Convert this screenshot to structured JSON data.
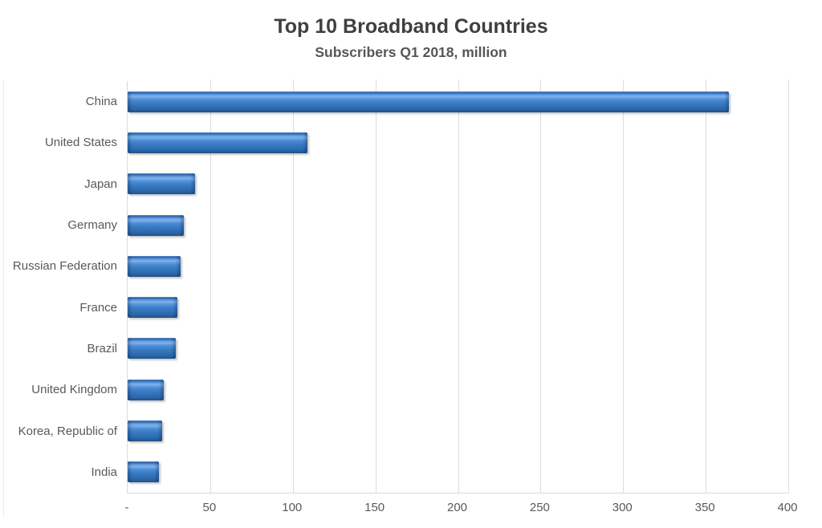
{
  "chart_data": {
    "type": "bar",
    "orientation": "horizontal",
    "title": "Top 10 Broadband Countries",
    "subtitle": "Subscribers Q1 2018, million",
    "categories": [
      "China",
      "United States",
      "Japan",
      "Germany",
      "Russian Federation",
      "France",
      "Brazil",
      "United Kingdom",
      "Korea, Republic of",
      "India"
    ],
    "values": [
      364,
      109,
      41,
      34,
      32,
      30,
      29,
      22,
      21,
      19
    ],
    "xlabel": "",
    "ylabel": "",
    "xlim": [
      0,
      400
    ],
    "xticks": [
      0,
      50,
      100,
      150,
      200,
      250,
      300,
      350,
      400
    ],
    "xtick_labels": [
      "-",
      "50",
      "100",
      "150",
      "200",
      "250",
      "300",
      "350",
      "400"
    ],
    "grid": true,
    "legend": false,
    "colors": {
      "bar_mid": "#3a7cc4",
      "bar_highlight": "#7eb2ec",
      "bar_dark_edge": "#1d4f88",
      "gridline": "#dcdcdc",
      "title_text": "#3f3f3f",
      "axis_text": "#595959",
      "background": "#ffffff"
    }
  }
}
